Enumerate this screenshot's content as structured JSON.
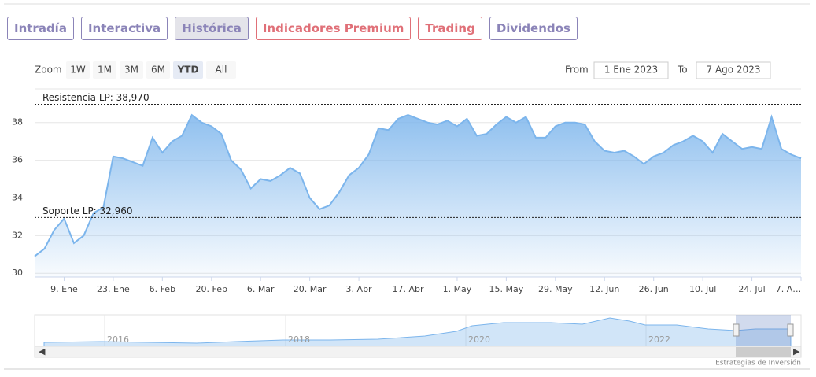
{
  "tabs": [
    {
      "label": "Intradía",
      "color": "#8b84b8",
      "selected": false
    },
    {
      "label": "Interactiva",
      "color": "#8b84b8",
      "selected": false
    },
    {
      "label": "Histórica",
      "color": "#8b84b8",
      "selected": true
    },
    {
      "label": "Indicadores Premium",
      "color": "#e07078",
      "selected": false
    },
    {
      "label": "Trading",
      "color": "#e07078",
      "selected": false
    },
    {
      "label": "Dividendos",
      "color": "#8b84b8",
      "selected": false
    }
  ],
  "zoom": {
    "label": "Zoom",
    "buttons": [
      {
        "label": "1W",
        "selected": false
      },
      {
        "label": "1M",
        "selected": false
      },
      {
        "label": "3M",
        "selected": false
      },
      {
        "label": "6M",
        "selected": false
      },
      {
        "label": "YTD",
        "selected": true
      },
      {
        "label": "All",
        "selected": false
      }
    ]
  },
  "range": {
    "from_label": "From",
    "from": "1 Ene 2023",
    "to_label": "To",
    "to": "7 Ago 2023"
  },
  "chart_data": {
    "type": "area",
    "color": "#7cb5ec",
    "categories": [
      null,
      null,
      null,
      "9. Ene",
      null,
      null,
      null,
      null,
      "23. Ene",
      null,
      null,
      null,
      null,
      "6. Feb",
      null,
      null,
      null,
      null,
      "20. Feb",
      null,
      null,
      null,
      null,
      "6. Mar",
      null,
      null,
      null,
      null,
      "20. Mar",
      null,
      null,
      null,
      null,
      "3. Abr",
      null,
      null,
      null,
      null,
      "17. Abr",
      null,
      null,
      null,
      null,
      "1. May",
      null,
      null,
      null,
      null,
      "15. May",
      null,
      null,
      null,
      null,
      "29. May",
      null,
      null,
      null,
      null,
      "12. Jun",
      null,
      null,
      null,
      null,
      "26. Jun",
      null,
      null,
      null,
      null,
      "10. Jul",
      null,
      null,
      null,
      null,
      "24. Jul",
      null,
      null,
      null,
      null,
      "7. A…"
    ],
    "values": [
      30.9,
      31.3,
      32.3,
      32.9,
      31.6,
      32.0,
      33.2,
      33.5,
      36.2,
      36.1,
      35.9,
      35.7,
      37.2,
      36.4,
      37.0,
      37.3,
      38.4,
      38.0,
      37.8,
      37.4,
      36.0,
      35.5,
      34.5,
      35.0,
      34.9,
      35.2,
      35.6,
      35.3,
      34.0,
      33.4,
      33.6,
      34.3,
      35.2,
      35.6,
      36.3,
      37.7,
      37.6,
      38.2,
      38.4,
      38.2,
      38.0,
      37.9,
      38.1,
      37.8,
      38.2,
      37.3,
      37.4,
      37.9,
      38.3,
      38.0,
      38.3,
      37.2,
      37.2,
      37.8,
      38.0,
      38.0,
      37.9,
      37.0,
      36.5,
      36.4,
      36.5,
      36.2,
      35.8,
      36.2,
      36.4,
      36.8,
      37.0,
      37.3,
      37.0,
      36.4,
      37.4,
      37.0,
      36.6,
      36.7,
      36.6,
      38.3,
      36.6,
      36.3,
      36.1
    ],
    "ylim": [
      29.8,
      39.7
    ],
    "yticks": [
      30,
      32,
      34,
      36,
      38
    ],
    "grid": true,
    "plot_lines": [
      {
        "value": 38.97,
        "label": "Resistencia LP: 38,970"
      },
      {
        "value": 32.96,
        "label": "Soporte LP: 32,960"
      }
    ]
  },
  "navigator": {
    "labels": [
      "2016",
      "2018",
      "2020",
      "2022"
    ]
  },
  "credits": "Estrategias de Inversión"
}
